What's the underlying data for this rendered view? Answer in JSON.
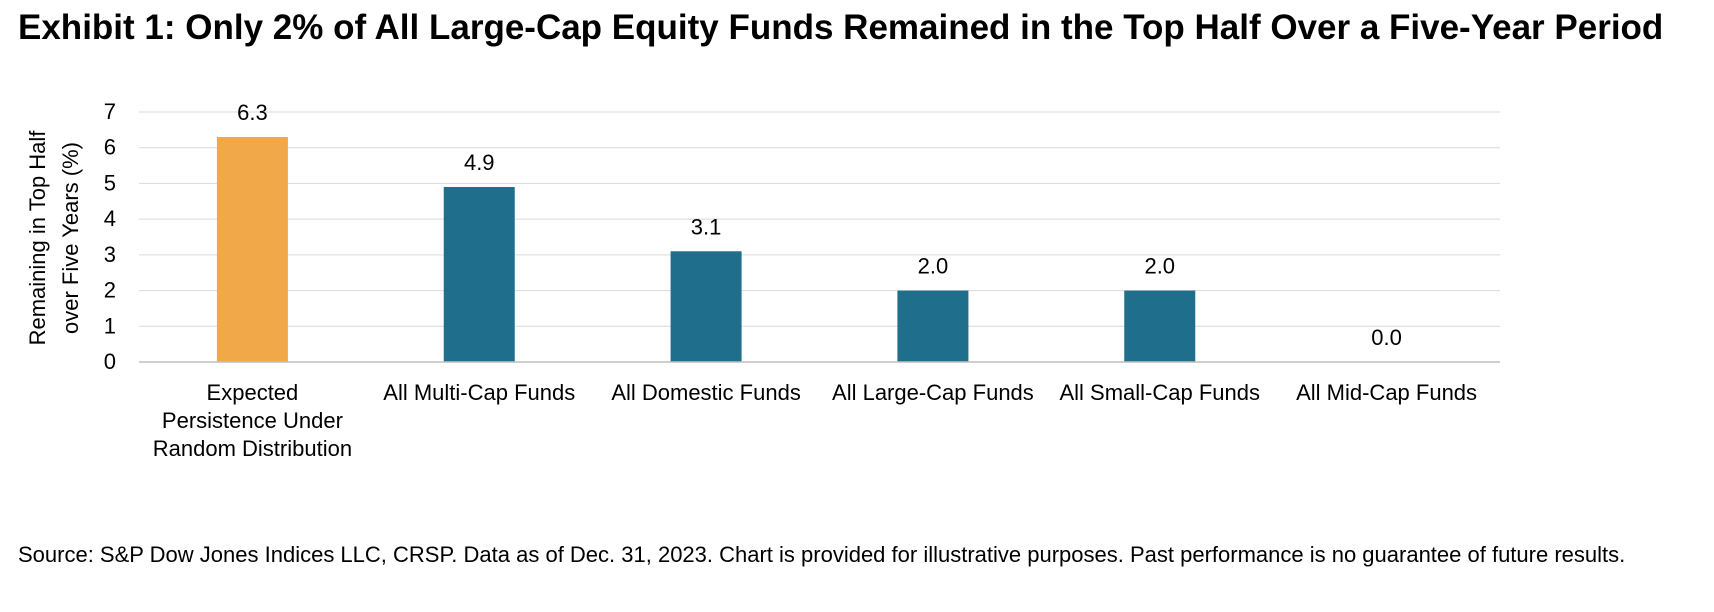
{
  "title": "Exhibit 1: Only 2% of All Large-Cap Equity Funds Remained in the Top Half Over a Five-Year Period",
  "source_note": "Source: S&P Dow Jones Indices LLC, CRSP.  Data as of Dec. 31, 2023.  Chart is provided for illustrative purposes.  Past performance is no guarantee of future results.",
  "chart_data": {
    "type": "bar",
    "ylabel_lines": [
      "Remaining in Top Half",
      "over Five Years (%)"
    ],
    "xlabel": "",
    "ylim": [
      0,
      7
    ],
    "yticks": [
      0,
      1,
      2,
      3,
      4,
      5,
      6,
      7
    ],
    "grid": true,
    "categories": [
      [
        "Expected",
        "Persistence Under",
        "Random Distribution"
      ],
      [
        "All Multi-Cap Funds"
      ],
      [
        "All Domestic Funds"
      ],
      [
        "All Large-Cap Funds"
      ],
      [
        "All Small-Cap Funds"
      ],
      [
        "All Mid-Cap Funds"
      ]
    ],
    "values": [
      6.3,
      4.9,
      3.1,
      2.0,
      2.0,
      0.0
    ],
    "data_labels": [
      "6.3",
      "4.9",
      "3.1",
      "2.0",
      "2.0",
      "0.0"
    ],
    "colors": [
      "#F0A848",
      "#1F6E8C",
      "#1F6E8C",
      "#1F6E8C",
      "#1F6E8C",
      "#1F6E8C"
    ],
    "gridline_color": "#D9D9D9",
    "axis_color": "#BFBFBF"
  }
}
